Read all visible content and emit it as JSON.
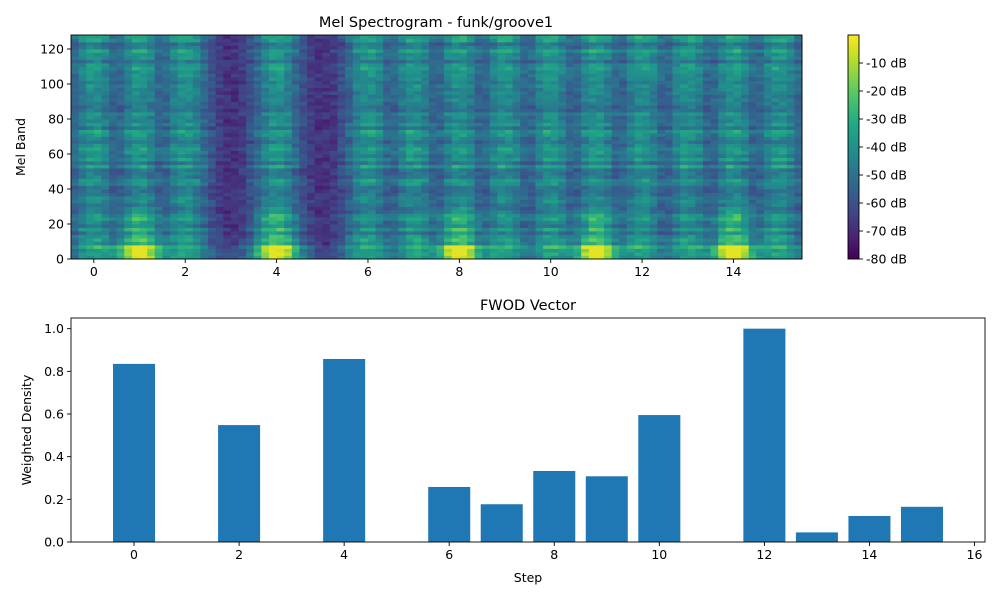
{
  "chart_data": [
    {
      "type": "heatmap",
      "title": "Mel Spectrogram - funk/groove1",
      "xlabel": "",
      "ylabel": "Mel Band",
      "xlim": [
        -0.5,
        15.5
      ],
      "ylim": [
        0,
        128
      ],
      "x_ticks": [
        0,
        2,
        4,
        6,
        8,
        10,
        12,
        14
      ],
      "y_ticks": [
        0,
        20,
        40,
        60,
        80,
        100,
        120
      ],
      "colormap": "viridis",
      "colorbar": {
        "range": [
          -80,
          0
        ],
        "ticks": [
          -10,
          -20,
          -30,
          -40,
          -50,
          -60,
          -70,
          -80
        ],
        "tick_labels": [
          "-10 dB",
          "-20 dB",
          "-30 dB",
          "-40 dB",
          "-50 dB",
          "-60 dB",
          "-70 dB",
          "-80 dB"
        ]
      },
      "onset_steps": [
        0,
        1,
        2,
        4,
        6,
        7,
        8,
        9,
        10,
        11,
        12,
        13,
        14,
        15
      ],
      "strong_low_band_steps": [
        1,
        4,
        8,
        11,
        14
      ],
      "grid": false
    },
    {
      "type": "bar",
      "title": "FWOD Vector",
      "xlabel": "Step",
      "ylabel": "Weighted Density",
      "x": [
        0,
        2,
        4,
        6,
        7,
        8,
        9,
        10,
        12,
        13,
        14,
        15
      ],
      "values": [
        0.835,
        0.548,
        0.858,
        0.258,
        0.177,
        0.333,
        0.308,
        0.595,
        1.0,
        0.045,
        0.122,
        0.165
      ],
      "xlim": [
        -1.2,
        16.2
      ],
      "ylim": [
        0,
        1.05
      ],
      "x_ticks": [
        0,
        2,
        4,
        6,
        8,
        10,
        12,
        14,
        16
      ],
      "y_ticks": [
        0.0,
        0.2,
        0.4,
        0.6,
        0.8,
        1.0
      ],
      "y_tick_labels": [
        "0.0",
        "0.2",
        "0.4",
        "0.6",
        "0.8",
        "1.0"
      ],
      "bar_color": "#1f77b4",
      "grid": false
    }
  ]
}
